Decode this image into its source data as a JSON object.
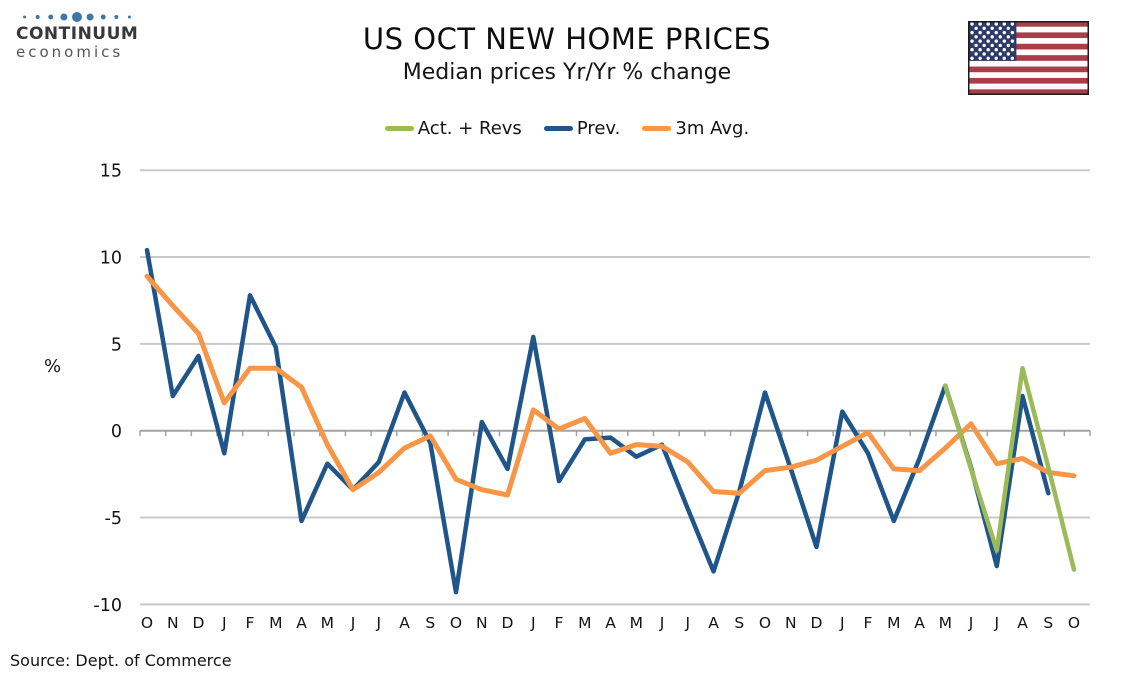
{
  "brand": {
    "name": "CONTINUUM",
    "subname": "economics",
    "dot_color": "#4076A8",
    "dot_sizes": [
      3,
      4,
      5,
      7,
      10,
      7,
      5,
      4,
      3
    ]
  },
  "flag": {
    "label": "us-flag",
    "red": "#A93E49",
    "blue": "#2E3A68",
    "white": "#FFFFFF",
    "border": "#1A1A1A"
  },
  "chart_data": {
    "type": "line",
    "title": "US OCT NEW HOME PRICES",
    "subtitle": "Median prices Yr/Yr % change",
    "ylabel": "%",
    "source": "Source: Dept. of Commerce",
    "ylim": [
      -10,
      15
    ],
    "yticks": [
      15,
      10,
      5,
      0,
      -5,
      -10
    ],
    "grid": "horizontal",
    "legend_position": "top",
    "grid_color": "#C9C9C9",
    "axis_color": "#A3A3A3",
    "label_color": "#141414",
    "x_labels": [
      "O",
      "N",
      "D",
      "J",
      "F",
      "M",
      "A",
      "M",
      "J",
      "J",
      "A",
      "S",
      "O",
      "N",
      "D",
      "J",
      "F",
      "M",
      "A",
      "M",
      "J",
      "J",
      "A",
      "S",
      "O",
      "N",
      "D",
      "J",
      "F",
      "M",
      "A",
      "M",
      "J",
      "J",
      "A",
      "S",
      "O"
    ],
    "series": [
      {
        "name": "Act. + Revs",
        "color": "#9CBB58",
        "values": [
          null,
          null,
          null,
          null,
          null,
          null,
          null,
          null,
          null,
          null,
          null,
          null,
          null,
          null,
          null,
          null,
          null,
          null,
          null,
          null,
          null,
          null,
          null,
          null,
          null,
          null,
          null,
          null,
          null,
          null,
          null,
          2.6,
          -2.2,
          -6.9,
          3.6,
          -2.1,
          -8.0
        ]
      },
      {
        "name": "Prev.",
        "color": "#20558A",
        "values": [
          10.4,
          2.0,
          4.3,
          -1.3,
          7.8,
          4.8,
          -5.2,
          -1.9,
          -3.4,
          -1.8,
          2.2,
          -0.7,
          -9.3,
          0.5,
          -2.2,
          5.4,
          -2.9,
          -0.5,
          -0.4,
          -1.5,
          -0.8,
          -4.5,
          -8.1,
          -3.5,
          2.2,
          -2.2,
          -6.7,
          1.1,
          -1.3,
          -5.2,
          -1.6,
          2.6,
          -2.1,
          -7.8,
          2.0,
          -3.6,
          null
        ]
      },
      {
        "name": "3m Avg.",
        "color": "#F79646",
        "values": [
          8.9,
          7.2,
          5.6,
          1.6,
          3.6,
          3.6,
          2.5,
          -0.8,
          -3.4,
          -2.4,
          -1.0,
          -0.3,
          -2.8,
          -3.4,
          -3.7,
          1.2,
          0.1,
          0.7,
          -1.3,
          -0.8,
          -0.9,
          -1.8,
          -3.5,
          -3.6,
          -2.3,
          -2.1,
          -1.7,
          -0.9,
          -0.1,
          -2.2,
          -2.3,
          -1.0,
          0.4,
          -1.9,
          -1.6,
          -2.4,
          -2.6
        ]
      }
    ]
  }
}
